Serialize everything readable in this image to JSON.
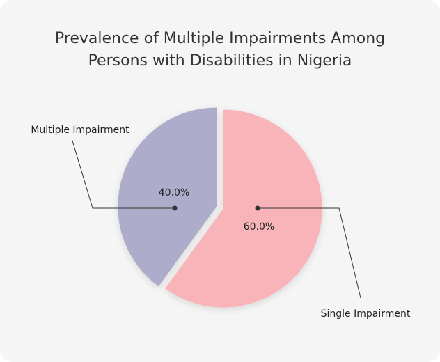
{
  "chart_data": {
    "type": "pie",
    "title_lines": [
      "Prevalence of Multiple Impairments Among",
      "Persons with Disabilities in Nigeria"
    ],
    "slices": [
      {
        "label": "Single Impairment",
        "value": 60.0,
        "display": "60.0%",
        "color": "#f8b4b9"
      },
      {
        "label": "Multiple Impairment",
        "value": 40.0,
        "display": "40.0%",
        "color": "#adadcb"
      }
    ],
    "legend": "none"
  }
}
